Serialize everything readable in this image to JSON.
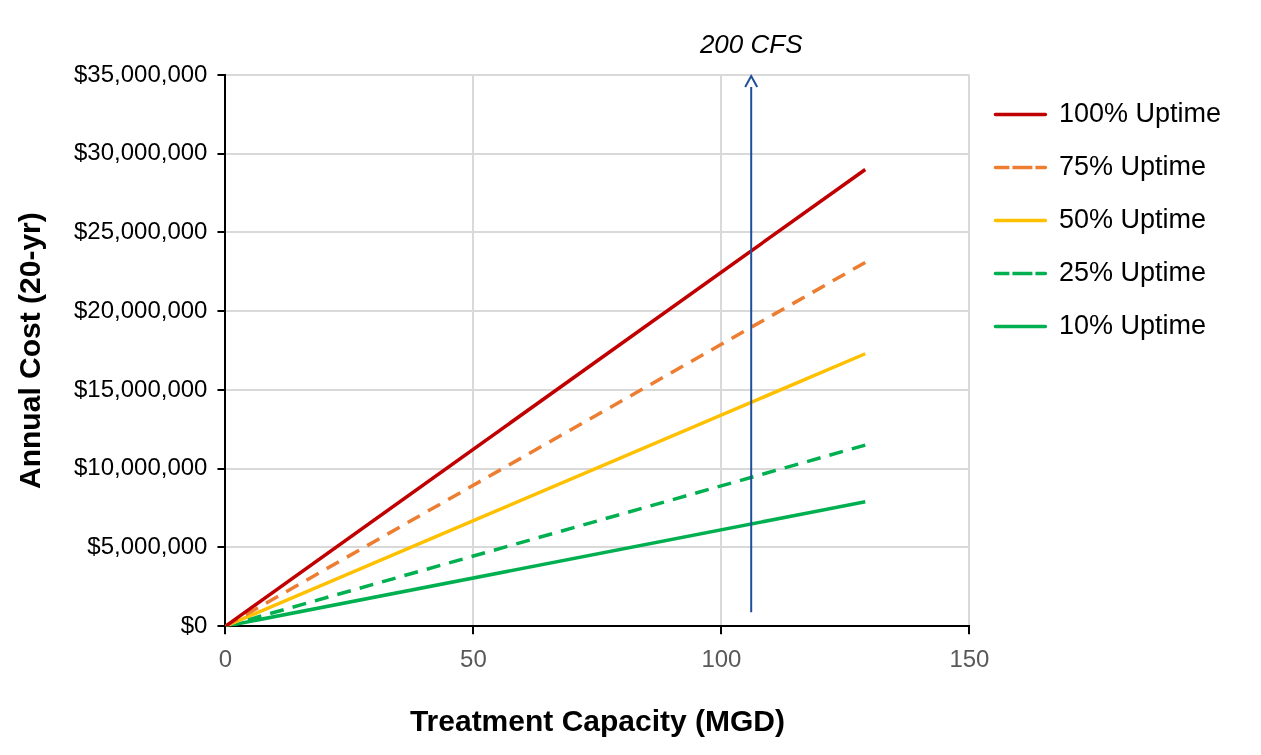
{
  "chart_data": {
    "type": "line",
    "xlabel": "Treatment Capacity (MGD)",
    "ylabel": "Annual Cost (20-yr)",
    "x": [
      0,
      129
    ],
    "series": [
      {
        "name": "100% Uptime",
        "color": "#c00000",
        "values": [
          0,
          29000000
        ],
        "line_style": "solid"
      },
      {
        "name": "75% Uptime",
        "color": "#ed7d31",
        "values": [
          0,
          23100000
        ],
        "line_style": "dashed"
      },
      {
        "name": "50% Uptime",
        "color": "#ffc000",
        "values": [
          0,
          17300000
        ],
        "line_style": "solid"
      },
      {
        "name": "25% Uptime",
        "color": "#00b050",
        "values": [
          0,
          11500000
        ],
        "line_style": "dashed"
      },
      {
        "name": "10% Uptime",
        "color": "#00b050",
        "values": [
          0,
          7900000
        ],
        "line_style": "solid"
      }
    ],
    "xlim": [
      0,
      150
    ],
    "xticks": [
      0,
      50,
      100,
      150
    ],
    "ylim": [
      0,
      35000000
    ],
    "yticks": [
      {
        "value": 0,
        "label": "$0"
      },
      {
        "value": 5000000,
        "label": "$5,000,000"
      },
      {
        "value": 10000000,
        "label": "$10,000,000"
      },
      {
        "value": 15000000,
        "label": "$15,000,000"
      },
      {
        "value": 20000000,
        "label": "$20,000,000"
      },
      {
        "value": 25000000,
        "label": "$25,000,000"
      },
      {
        "value": 30000000,
        "label": "$30,000,000"
      },
      {
        "value": 35000000,
        "label": "$35,000,000"
      }
    ],
    "ref_lines": [
      {
        "axis": "x",
        "value": 106,
        "label": "200 CFS",
        "color": "#1f4e9a"
      }
    ],
    "grid": true,
    "legend": "right",
    "marker": "none"
  }
}
